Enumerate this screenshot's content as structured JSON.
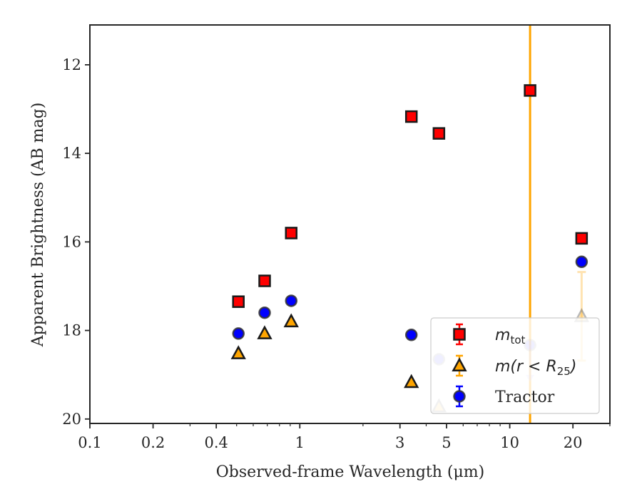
{
  "chart_data": {
    "type": "scatter",
    "xlabel": "Observed-frame Wavelength (μm)",
    "ylabel": "Apparent Brightness (AB mag)",
    "xscale": "log",
    "xlim": [
      0.1,
      30
    ],
    "ylim": [
      20.1,
      11.1
    ],
    "y_inverted": true,
    "xticks": [
      0.1,
      0.2,
      0.4,
      1,
      3,
      5,
      10,
      20
    ],
    "xtick_labels": [
      "0.1",
      "0.2",
      "0.4",
      "1",
      "3",
      "5",
      "10",
      "20"
    ],
    "yticks": [
      12,
      14,
      16,
      18,
      20
    ],
    "ytick_labels": [
      "12",
      "14",
      "16",
      "18",
      "20"
    ],
    "legend_placement": "lower right",
    "series": [
      {
        "key": "mtot",
        "legend_main": "m",
        "legend_sub": "tot",
        "marker": "square",
        "color": "#ff0000",
        "edge_color": "#1a1a1a",
        "points": [
          {
            "x": 0.51,
            "y": 17.35,
            "alpha": 1
          },
          {
            "x": 0.68,
            "y": 16.88,
            "alpha": 1
          },
          {
            "x": 0.91,
            "y": 15.8,
            "alpha": 1
          },
          {
            "x": 3.4,
            "y": 13.17,
            "alpha": 1
          },
          {
            "x": 4.6,
            "y": 13.55,
            "alpha": 1
          },
          {
            "x": 12.5,
            "y": 12.58,
            "alpha": 1
          },
          {
            "x": 22.0,
            "y": 15.92,
            "alpha": 1
          }
        ]
      },
      {
        "key": "mr25",
        "legend_main": "m(r < R",
        "legend_sub": "25",
        "legend_end": ")",
        "marker": "triangle",
        "color": "#ffa500",
        "edge_color": "#1a1a1a",
        "points": [
          {
            "x": 0.51,
            "y": 18.52,
            "alpha": 1
          },
          {
            "x": 0.68,
            "y": 18.07,
            "alpha": 1
          },
          {
            "x": 0.91,
            "y": 17.8,
            "alpha": 1
          },
          {
            "x": 3.4,
            "y": 19.17,
            "alpha": 1
          },
          {
            "x": 4.6,
            "y": 19.72,
            "alpha": 0.3
          },
          {
            "x": 22.0,
            "y": 17.68,
            "alpha": 0.3,
            "yerr_low": 1.0,
            "yerr_high": 1.0
          }
        ]
      },
      {
        "key": "tractor",
        "legend_main": "Tractor",
        "marker": "circle",
        "color": "#0000ff",
        "edge_color": "#333333",
        "points": [
          {
            "x": 0.51,
            "y": 18.07,
            "alpha": 1
          },
          {
            "x": 0.68,
            "y": 17.6,
            "alpha": 1
          },
          {
            "x": 0.91,
            "y": 17.33,
            "alpha": 1
          },
          {
            "x": 3.4,
            "y": 18.1,
            "alpha": 1
          },
          {
            "x": 4.6,
            "y": 18.65,
            "alpha": 0.3
          },
          {
            "x": 12.5,
            "y": 18.33,
            "alpha": 0.3,
            "yerr_high": 0.8
          },
          {
            "x": 22.0,
            "y": 16.45,
            "alpha": 1
          }
        ]
      }
    ],
    "vertical_line": {
      "x": 12.5,
      "color": "#ffa500"
    }
  }
}
